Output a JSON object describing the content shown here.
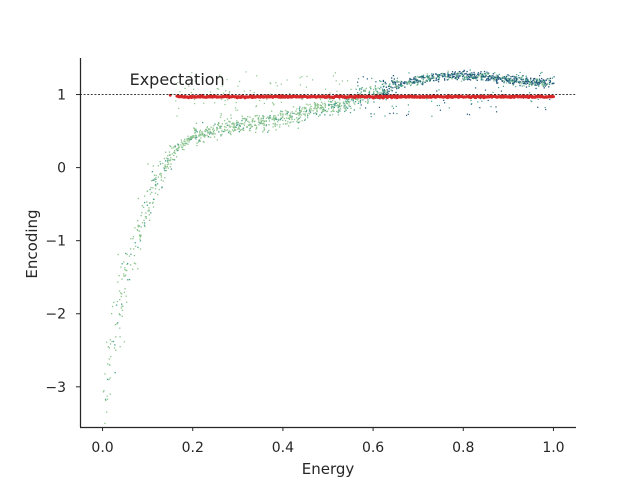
{
  "chart_data": {
    "type": "scatter",
    "xlabel": "Energy",
    "ylabel": "Encoding",
    "xlim": [
      -0.05,
      1.05
    ],
    "ylim": [
      -3.55,
      1.5
    ],
    "xticks": [
      0.0,
      0.2,
      0.4,
      0.6,
      0.8,
      1.0
    ],
    "xtick_labels": [
      "0.0",
      "0.2",
      "0.4",
      "0.6",
      "0.8",
      "1.0"
    ],
    "yticks": [
      -3,
      -2,
      -1,
      0,
      1
    ],
    "ytick_labels": [
      "−3",
      "−2",
      "−1",
      "0",
      "1"
    ],
    "grid": false,
    "colors": {
      "curve_light": "#8dc58f",
      "curve_mid": "#4a9e8c",
      "curve_dark": "#21577a",
      "expectation": "#d62728",
      "reference_line": "#000000",
      "axis": "#262626"
    },
    "reference_line": {
      "y": 1.0,
      "style": "dashed"
    },
    "annotation": {
      "text": "Expectation",
      "x": 0.06,
      "y": 1.13
    },
    "expectation_series": {
      "y": 0.97,
      "x_range": [
        0.165,
        1.0
      ]
    },
    "curve_points": [
      {
        "x": 0.0,
        "y": -3.3
      },
      {
        "x": 0.01,
        "y": -2.85
      },
      {
        "x": 0.02,
        "y": -2.5
      },
      {
        "x": 0.03,
        "y": -2.1
      },
      {
        "x": 0.04,
        "y": -1.8
      },
      {
        "x": 0.05,
        "y": -1.5
      },
      {
        "x": 0.06,
        "y": -1.25
      },
      {
        "x": 0.07,
        "y": -1.05
      },
      {
        "x": 0.08,
        "y": -0.85
      },
      {
        "x": 0.09,
        "y": -0.65
      },
      {
        "x": 0.1,
        "y": -0.48
      },
      {
        "x": 0.11,
        "y": -0.32
      },
      {
        "x": 0.12,
        "y": -0.18
      },
      {
        "x": 0.13,
        "y": -0.06
      },
      {
        "x": 0.14,
        "y": 0.05
      },
      {
        "x": 0.15,
        "y": 0.15
      },
      {
        "x": 0.16,
        "y": 0.24
      },
      {
        "x": 0.18,
        "y": 0.35
      },
      {
        "x": 0.2,
        "y": 0.44
      },
      {
        "x": 0.22,
        "y": 0.48
      },
      {
        "x": 0.25,
        "y": 0.53
      },
      {
        "x": 0.3,
        "y": 0.58
      },
      {
        "x": 0.35,
        "y": 0.63
      },
      {
        "x": 0.4,
        "y": 0.69
      },
      {
        "x": 0.45,
        "y": 0.76
      },
      {
        "x": 0.5,
        "y": 0.84
      },
      {
        "x": 0.55,
        "y": 0.93
      },
      {
        "x": 0.6,
        "y": 1.03
      },
      {
        "x": 0.65,
        "y": 1.13
      },
      {
        "x": 0.7,
        "y": 1.21
      },
      {
        "x": 0.75,
        "y": 1.26
      },
      {
        "x": 0.8,
        "y": 1.27
      },
      {
        "x": 0.85,
        "y": 1.25
      },
      {
        "x": 0.9,
        "y": 1.21
      },
      {
        "x": 0.95,
        "y": 1.18
      },
      {
        "x": 1.0,
        "y": 1.16
      }
    ]
  }
}
